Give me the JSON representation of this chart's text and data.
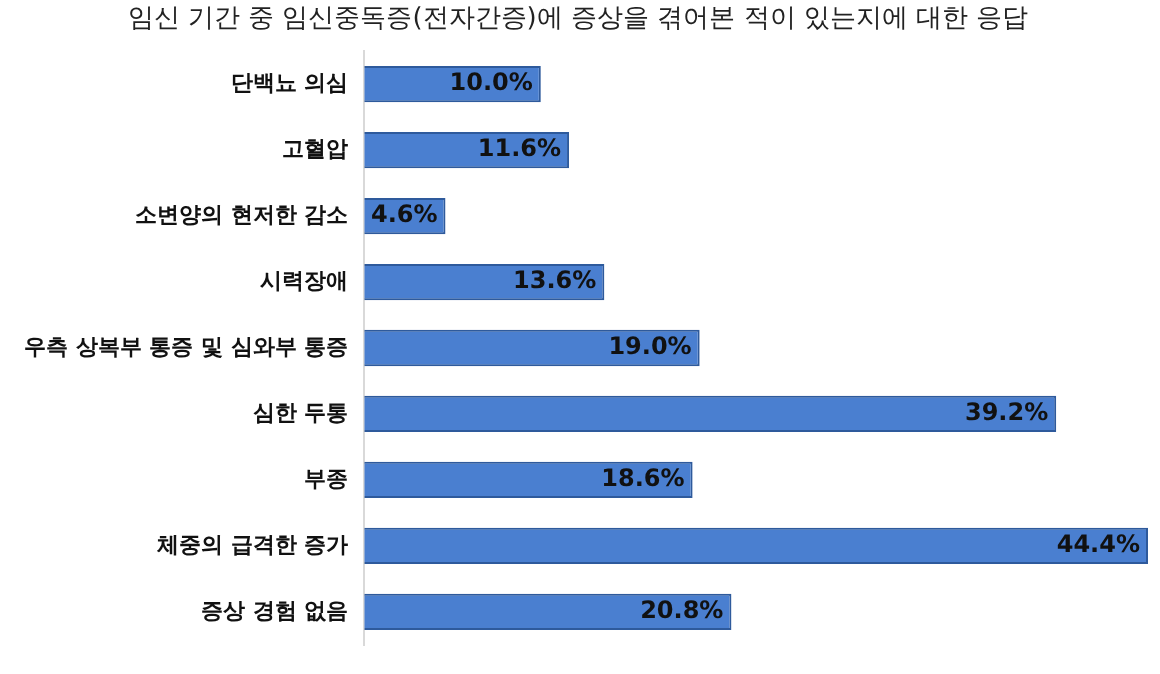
{
  "chart_data": {
    "type": "bar",
    "orientation": "horizontal",
    "title": "임신 기간 중 임신중독증(전자간증)에 증상을 겪어본 적이 있는지에 대한 응답",
    "categories": [
      "단백뇨 의심",
      "고혈압",
      "소변양의 현저한 감소",
      "시력장애",
      "우측 상복부 통증 및 심와부 통증",
      "심한 두통",
      "부종",
      "체중의 급격한 증가",
      "증상 경험 없음"
    ],
    "values": [
      10.0,
      11.6,
      4.6,
      13.6,
      19.0,
      39.2,
      18.6,
      44.4,
      20.8
    ],
    "value_labels": [
      "10.0%",
      "11.6%",
      "4.6%",
      "13.6%",
      "19.0%",
      "39.2%",
      "18.6%",
      "44.4%",
      "20.8%"
    ],
    "color": "#4a7fd0",
    "grid": false,
    "legend": false,
    "tick_labels": "y"
  }
}
